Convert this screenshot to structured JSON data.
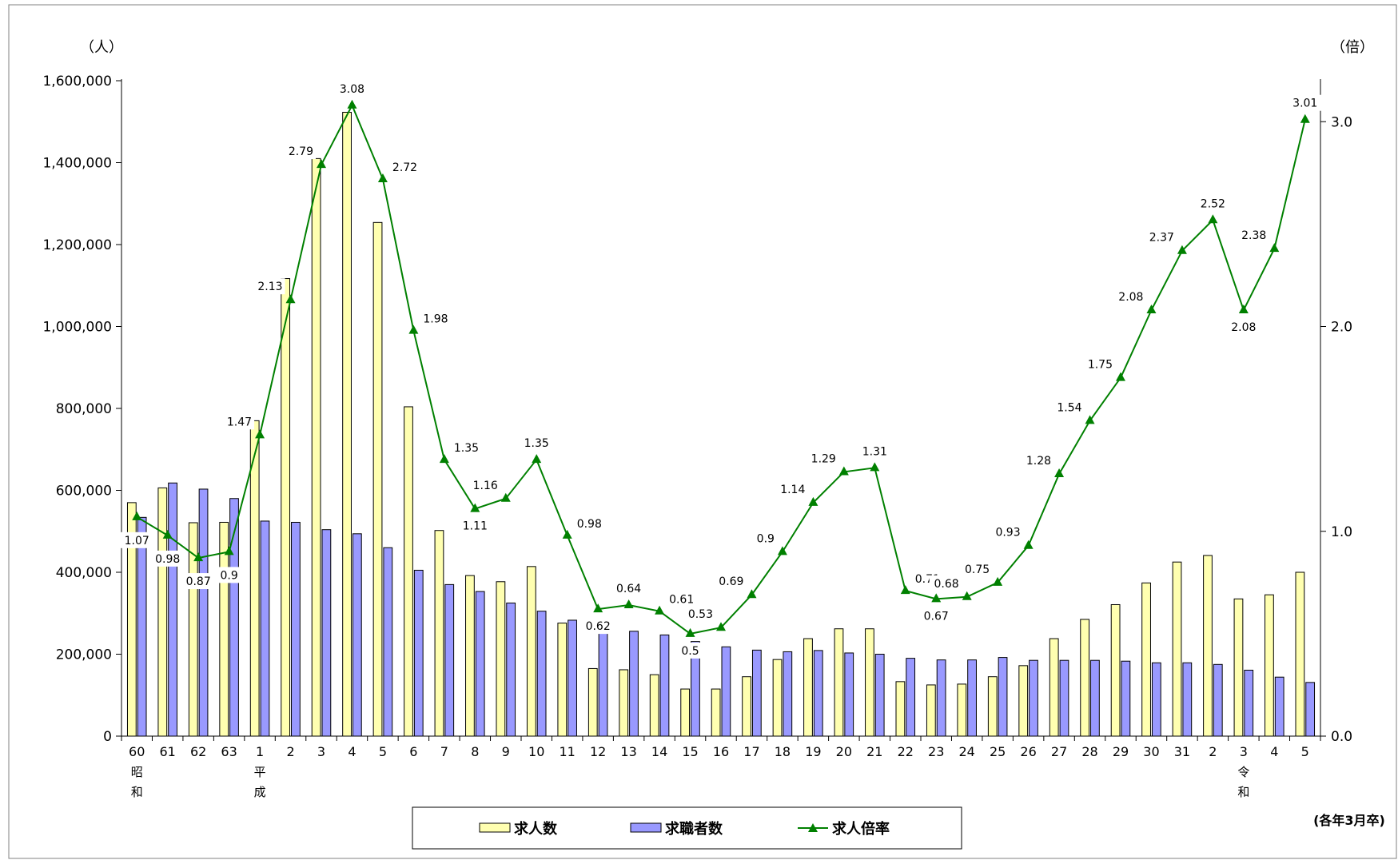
{
  "chart_data": {
    "type": "bar",
    "combo": "bar+line",
    "x_labels": [
      "60",
      "61",
      "62",
      "63",
      "1",
      "2",
      "3",
      "4",
      "5",
      "6",
      "7",
      "8",
      "9",
      "10",
      "11",
      "12",
      "13",
      "14",
      "15",
      "16",
      "17",
      "18",
      "19",
      "20",
      "21",
      "22",
      "23",
      "24",
      "25",
      "26",
      "27",
      "28",
      "29",
      "30",
      "31",
      "2",
      "3",
      "4",
      "5"
    ],
    "era_markers": [
      {
        "index": 0,
        "chars": [
          "昭",
          "和"
        ]
      },
      {
        "index": 4,
        "chars": [
          "平",
          "成"
        ]
      },
      {
        "index": 36,
        "chars": [
          "令",
          "和"
        ]
      }
    ],
    "series": [
      {
        "name": "求人数",
        "type": "bar",
        "axis": "left",
        "color": "#ffffb0",
        "values": [
          570000,
          606000,
          521000,
          522000,
          770000,
          1117000,
          1410000,
          1523000,
          1254000,
          804000,
          502000,
          392000,
          377000,
          414000,
          276000,
          165000,
          162000,
          150000,
          115000,
          115000,
          145000,
          187000,
          238000,
          262000,
          262000,
          133000,
          125000,
          127000,
          145000,
          172000,
          238000,
          285000,
          321000,
          374000,
          425000,
          441000,
          335000,
          345000,
          400000
        ]
      },
      {
        "name": "求職者数",
        "type": "bar",
        "axis": "left",
        "color": "#9999ff",
        "values": [
          534000,
          618000,
          603000,
          580000,
          525000,
          522000,
          504000,
          494000,
          460000,
          405000,
          370000,
          353000,
          325000,
          305000,
          283000,
          265000,
          256000,
          247000,
          231000,
          218000,
          210000,
          206000,
          209000,
          203000,
          200000,
          190000,
          186000,
          186000,
          192000,
          185000,
          185000,
          185000,
          183000,
          179000,
          179000,
          175000,
          161000,
          144000,
          131000
        ]
      },
      {
        "name": "求人倍率",
        "type": "line",
        "axis": "right",
        "color": "#008000",
        "values": [
          1.07,
          0.98,
          0.87,
          0.9,
          1.47,
          2.13,
          2.79,
          3.08,
          2.72,
          1.98,
          1.35,
          1.11,
          1.16,
          1.35,
          0.98,
          0.62,
          0.64,
          0.61,
          0.5,
          0.53,
          0.69,
          0.9,
          1.14,
          1.29,
          1.31,
          0.71,
          0.67,
          0.68,
          0.75,
          0.93,
          1.28,
          1.54,
          1.75,
          2.08,
          2.37,
          2.52,
          2.08,
          2.38,
          3.01
        ],
        "labels": [
          "1.07",
          "0.98",
          "0.87",
          "0.9",
          "1.47",
          "2.13",
          "2.79",
          "3.08",
          "2.72",
          "1.98",
          "1.35",
          "1.11",
          "1.16",
          "1.35",
          "0.98",
          "0.62",
          "0.64",
          "0.61",
          "0.5",
          "0.53",
          "0.69",
          "0.9",
          "1.14",
          "1.29",
          "1.31",
          "0.71",
          "0.67",
          "0.68",
          "0.75",
          "0.93",
          "1.28",
          "1.54",
          "1.75",
          "2.08",
          "2.37",
          "2.52",
          "2.08",
          "2.38",
          "3.01"
        ]
      }
    ],
    "y_left": {
      "unit": "（人）",
      "min": 0,
      "max": 1600000,
      "ticks": [
        "0",
        "200,000",
        "400,000",
        "600,000",
        "800,000",
        "1,000,000",
        "1,200,000",
        "1,400,000",
        "1,600,000"
      ]
    },
    "y_right": {
      "unit": "（倍）",
      "min": 0,
      "max": 3.2,
      "ticks": [
        "0.0",
        "1.0",
        "2.0",
        "3.0"
      ]
    },
    "legend": {
      "position": "bottom",
      "items": [
        "求人数",
        "求職者数",
        "求人倍率"
      ]
    },
    "note": "(各年3月卒)",
    "grid": false
  }
}
